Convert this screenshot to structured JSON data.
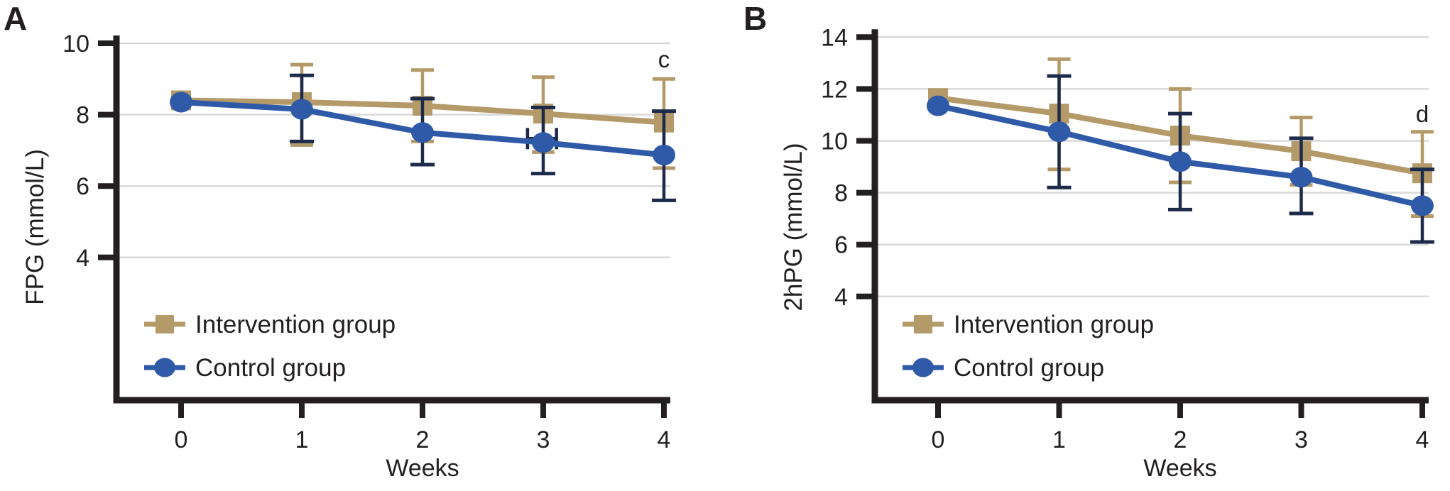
{
  "figure": {
    "background": "#ffffff",
    "text_color": "#231f20",
    "grid_color": "#d9d9d9",
    "legend": [
      "Intervention group",
      "Control group"
    ]
  },
  "chart_data": [
    {
      "id": "A",
      "type": "line",
      "panel_label": "A",
      "xlabel": "Weeks",
      "ylabel": "FPG (mmol/L)",
      "x": [
        0,
        1,
        2,
        3,
        4
      ],
      "xticks": [
        0,
        1,
        2,
        3,
        4
      ],
      "yticks": [
        4,
        6,
        8,
        10
      ],
      "ylim": [
        0,
        10.2
      ],
      "grid": true,
      "legend_position": "lower-left",
      "significance_label": {
        "text": "c",
        "week": 4
      },
      "series": [
        {
          "name": "Intervention group",
          "color": "#b49a68",
          "error_color": "#b49a68",
          "marker": "square",
          "values": [
            8.4,
            8.35,
            8.25,
            8.03,
            7.78
          ],
          "err_low": [
            null,
            7.15,
            7.25,
            6.95,
            6.5
          ],
          "err_high": [
            null,
            9.4,
            9.25,
            9.05,
            9.0
          ]
        },
        {
          "name": "Control group",
          "color": "#2e5aa8",
          "error_color": "#1d2b4b",
          "marker": "circle",
          "values": [
            8.35,
            8.15,
            7.5,
            7.22,
            6.87
          ],
          "err_low": [
            null,
            7.25,
            6.6,
            6.35,
            5.6
          ],
          "err_high": [
            null,
            9.1,
            8.45,
            8.2,
            8.1
          ]
        }
      ],
      "x_error_bar": {
        "series": "Control group",
        "y": 7.33,
        "x_min": 2.87,
        "x_max": 3.11,
        "color": "#1d2b4b"
      }
    },
    {
      "id": "B",
      "type": "line",
      "panel_label": "B",
      "xlabel": "Weeks",
      "ylabel": "2hPG (mmol/L)",
      "x": [
        0,
        1,
        2,
        3,
        4
      ],
      "xticks": [
        0,
        1,
        2,
        3,
        4
      ],
      "yticks": [
        4,
        6,
        8,
        10,
        12,
        14
      ],
      "ylim": [
        0,
        14.2
      ],
      "grid": true,
      "legend_position": "lower-left",
      "significance_label": {
        "text": "d",
        "week": 4
      },
      "series": [
        {
          "name": "Intervention group",
          "color": "#b49a68",
          "error_color": "#b49a68",
          "marker": "square",
          "values": [
            11.65,
            11.05,
            10.2,
            9.6,
            8.75
          ],
          "err_low": [
            null,
            8.9,
            8.4,
            8.3,
            7.1
          ],
          "err_high": [
            null,
            13.15,
            12.0,
            10.9,
            10.35
          ]
        },
        {
          "name": "Control group",
          "color": "#2e5aa8",
          "error_color": "#1d2b4b",
          "marker": "circle",
          "values": [
            11.35,
            10.35,
            9.2,
            8.6,
            7.5
          ],
          "err_low": [
            null,
            8.2,
            7.35,
            7.2,
            6.1
          ],
          "err_high": [
            null,
            12.5,
            11.05,
            10.1,
            8.9
          ]
        }
      ]
    }
  ]
}
